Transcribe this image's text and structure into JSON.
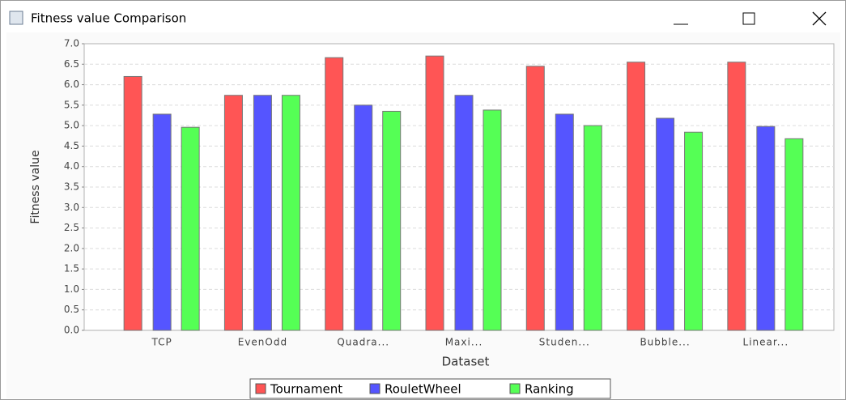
{
  "window": {
    "title": "Fitness value Comparison"
  },
  "chart_data": {
    "type": "bar",
    "x_label": "Dataset",
    "y_label": "Fitness value",
    "categories": [
      "TCP",
      "EvenOdd",
      "Quadra...",
      "Maxi...",
      "Studen...",
      "Bubble...",
      "Linear..."
    ],
    "series": [
      {
        "name": "Tournament",
        "color": "#ff5555",
        "values": [
          6.2,
          5.74,
          6.66,
          6.7,
          6.45,
          6.55,
          6.55
        ]
      },
      {
        "name": "RouletWheel",
        "color": "#5555ff",
        "values": [
          5.28,
          5.74,
          5.5,
          5.74,
          5.28,
          5.18,
          4.98
        ]
      },
      {
        "name": "Ranking",
        "color": "#55ff55",
        "values": [
          4.96,
          5.74,
          5.35,
          5.38,
          5.0,
          4.84,
          4.68
        ]
      }
    ],
    "ylim": [
      0,
      7
    ],
    "yticks": [
      {
        "value": 0,
        "label": "0.0"
      },
      0.5,
      {
        "value": 1,
        "label": "1.0"
      },
      1.5,
      {
        "value": 2,
        "label": "2.0"
      },
      2.5,
      {
        "value": 3,
        "label": "3.0"
      },
      3.5,
      {
        "value": 4,
        "label": "4.0"
      },
      4.5,
      {
        "value": 5,
        "label": "5.0"
      },
      5.5,
      {
        "value": 6,
        "label": "6.0"
      },
      6.5,
      {
        "value": 7,
        "label": "7.0"
      }
    ],
    "grid": true,
    "legend": "bottom"
  }
}
